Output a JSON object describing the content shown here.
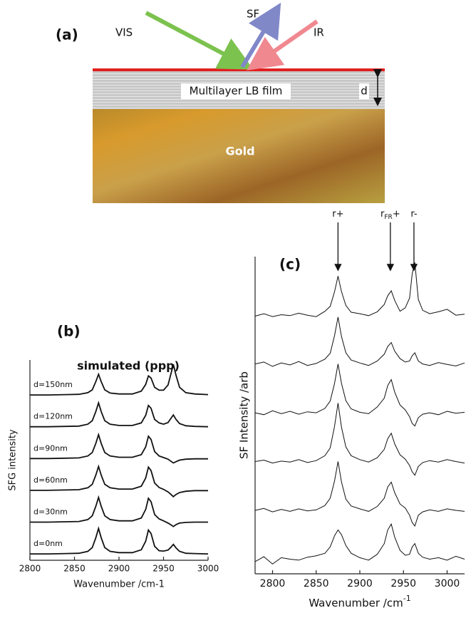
{
  "diagram": {
    "label": "(a)",
    "beams": [
      "VIS",
      "SF",
      "IR"
    ],
    "film": "Multilayer LB film",
    "thickness": "d",
    "substrate": "Gold"
  },
  "chart_data": [
    {
      "type": "line",
      "panel": "(b)",
      "title": "simulated (ppp)",
      "x_label": "Wavenumber /cm-1",
      "y_label": "SFG intensity",
      "xlim": [
        2800,
        3000
      ],
      "xticks": [
        2800,
        2850,
        2900,
        2950,
        3000
      ],
      "ylim": [
        0,
        6.3
      ],
      "color": "#111111",
      "x": [
        2800,
        2820,
        2840,
        2855,
        2865,
        2870,
        2874,
        2877,
        2880,
        2884,
        2890,
        2900,
        2915,
        2925,
        2930,
        2933,
        2936,
        2940,
        2945,
        2950,
        2955,
        2958,
        2961,
        2964,
        2968,
        2975,
        2985,
        3000
      ],
      "series": [
        {
          "name": "d=150nm",
          "values": [
            5.2,
            5.2,
            5.21,
            5.22,
            5.27,
            5.36,
            5.62,
            5.85,
            5.62,
            5.36,
            5.26,
            5.23,
            5.23,
            5.32,
            5.53,
            5.8,
            5.73,
            5.44,
            5.35,
            5.35,
            5.51,
            5.83,
            6.16,
            5.82,
            5.44,
            5.27,
            5.23,
            5.21
          ]
        },
        {
          "name": "d=120nm",
          "values": [
            4.2,
            4.2,
            4.21,
            4.22,
            4.28,
            4.39,
            4.68,
            4.95,
            4.68,
            4.39,
            4.28,
            4.24,
            4.24,
            4.32,
            4.56,
            4.87,
            4.78,
            4.43,
            4.32,
            4.28,
            4.33,
            4.45,
            4.57,
            4.43,
            4.3,
            4.23,
            4.21,
            4.2
          ]
        },
        {
          "name": "d=90nm",
          "values": [
            3.2,
            3.2,
            3.21,
            3.22,
            3.28,
            3.39,
            3.68,
            3.95,
            3.68,
            3.39,
            3.28,
            3.24,
            3.24,
            3.32,
            3.57,
            3.9,
            3.8,
            3.42,
            3.28,
            3.23,
            3.18,
            3.12,
            3.06,
            3.1,
            3.15,
            3.18,
            3.19,
            3.19
          ]
        },
        {
          "name": "d=60nm",
          "values": [
            2.2,
            2.2,
            2.21,
            2.22,
            2.28,
            2.39,
            2.68,
            2.95,
            2.68,
            2.39,
            2.28,
            2.24,
            2.24,
            2.33,
            2.59,
            2.93,
            2.82,
            2.43,
            2.29,
            2.23,
            2.15,
            2.08,
            2.0,
            2.07,
            2.13,
            2.17,
            2.19,
            2.19
          ]
        },
        {
          "name": "d=30nm",
          "values": [
            1.2,
            1.2,
            1.21,
            1.22,
            1.28,
            1.4,
            1.7,
            1.98,
            1.7,
            1.4,
            1.28,
            1.24,
            1.24,
            1.33,
            1.6,
            1.95,
            1.84,
            1.44,
            1.3,
            1.24,
            1.17,
            1.12,
            1.06,
            1.12,
            1.17,
            1.19,
            1.2,
            1.2
          ]
        },
        {
          "name": "d=0nm",
          "values": [
            0.2,
            0.2,
            0.21,
            0.22,
            0.28,
            0.4,
            0.71,
            1.0,
            0.71,
            0.4,
            0.28,
            0.24,
            0.24,
            0.33,
            0.6,
            0.95,
            0.84,
            0.44,
            0.3,
            0.29,
            0.32,
            0.4,
            0.5,
            0.39,
            0.28,
            0.22,
            0.21,
            0.2
          ]
        }
      ]
    },
    {
      "type": "line",
      "panel": "(c)",
      "x_label": "Wavenumber /cm",
      "x_label_sup": "-1",
      "y_label": "SF Intensity /arb",
      "xlim": [
        2780,
        3020
      ],
      "xticks": [
        2800,
        2850,
        2900,
        2950,
        3000
      ],
      "ylim": [
        0,
        6.5
      ],
      "color": "#222222",
      "annotations": [
        {
          "text": "r+",
          "x": 2875
        },
        {
          "text": "r",
          "subscript": "FR",
          "suffix": "+",
          "x": 2935
        },
        {
          "text": "r-",
          "x": 2962
        }
      ],
      "x": [
        2780,
        2790,
        2800,
        2810,
        2820,
        2830,
        2840,
        2850,
        2860,
        2866,
        2871,
        2875,
        2879,
        2884,
        2890,
        2900,
        2910,
        2920,
        2928,
        2932,
        2936,
        2940,
        2946,
        2952,
        2957,
        2960,
        2963,
        2967,
        2972,
        2980,
        2990,
        3000,
        3010,
        3020
      ],
      "series": [
        {
          "values": [
            5.28,
            5.33,
            5.27,
            5.31,
            5.29,
            5.34,
            5.3,
            5.27,
            5.38,
            5.48,
            5.78,
            6.1,
            5.78,
            5.5,
            5.36,
            5.33,
            5.29,
            5.37,
            5.52,
            5.7,
            5.8,
            5.6,
            5.38,
            5.45,
            5.65,
            6.15,
            6.38,
            5.62,
            5.4,
            5.33,
            5.37,
            5.42,
            5.3,
            5.32
          ]
        },
        {
          "values": [
            4.3,
            4.34,
            4.25,
            4.32,
            4.28,
            4.35,
            4.27,
            4.31,
            4.4,
            4.52,
            4.88,
            5.26,
            4.86,
            4.53,
            4.38,
            4.32,
            4.27,
            4.36,
            4.5,
            4.66,
            4.74,
            4.56,
            4.41,
            4.34,
            4.36,
            4.47,
            4.53,
            4.36,
            4.3,
            4.27,
            4.33,
            4.29,
            4.26,
            4.32
          ]
        },
        {
          "values": [
            3.3,
            3.26,
            3.34,
            3.28,
            3.33,
            3.27,
            3.32,
            3.3,
            3.39,
            3.54,
            3.9,
            4.3,
            3.9,
            3.55,
            3.38,
            3.31,
            3.28,
            3.42,
            3.6,
            3.86,
            3.98,
            3.72,
            3.46,
            3.36,
            3.22,
            3.08,
            3.03,
            3.2,
            3.27,
            3.3,
            3.26,
            3.33,
            3.29,
            3.31
          ]
        },
        {
          "values": [
            2.3,
            2.33,
            2.27,
            2.31,
            2.29,
            2.34,
            2.28,
            2.32,
            2.42,
            2.58,
            3.02,
            3.5,
            3.0,
            2.6,
            2.42,
            2.34,
            2.29,
            2.38,
            2.55,
            2.77,
            2.88,
            2.66,
            2.44,
            2.35,
            2.22,
            2.09,
            2.02,
            2.2,
            2.28,
            2.32,
            2.29,
            2.34,
            2.3,
            2.27
          ]
        },
        {
          "values": [
            1.3,
            1.34,
            1.27,
            1.32,
            1.28,
            1.33,
            1.29,
            1.31,
            1.4,
            1.55,
            1.9,
            2.3,
            1.88,
            1.53,
            1.39,
            1.33,
            1.28,
            1.38,
            1.55,
            1.78,
            1.88,
            1.66,
            1.43,
            1.35,
            1.2,
            1.05,
            0.98,
            1.2,
            1.27,
            1.31,
            1.28,
            1.33,
            1.3,
            1.28
          ]
        },
        {
          "values": [
            0.25,
            0.35,
            0.2,
            0.33,
            0.3,
            0.28,
            0.34,
            0.37,
            0.42,
            0.55,
            0.78,
            0.9,
            0.8,
            0.58,
            0.42,
            0.33,
            0.28,
            0.4,
            0.62,
            0.9,
            1.02,
            0.75,
            0.48,
            0.38,
            0.4,
            0.55,
            0.62,
            0.42,
            0.34,
            0.3,
            0.33,
            0.28,
            0.36,
            0.3
          ]
        }
      ]
    }
  ]
}
